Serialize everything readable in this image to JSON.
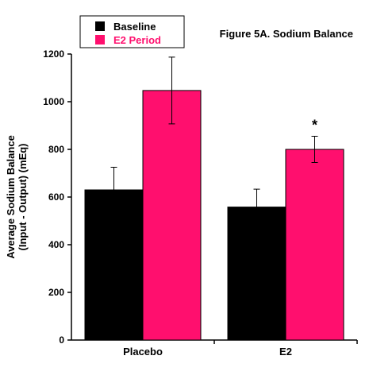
{
  "chart_data": {
    "type": "bar",
    "title": "Figure 5A.  Sodium Balance",
    "ylabel": "Average Sodium Balance",
    "ylabel2": "(Input - Output) (mEq)",
    "xlabel": "",
    "categories": [
      "Placebo",
      "E2"
    ],
    "ylim": [
      0,
      1200
    ],
    "yticks": [
      0,
      200,
      400,
      600,
      800,
      1000,
      1200
    ],
    "grid": false,
    "legend_position": "top-left",
    "series": [
      {
        "name": "Baseline",
        "color": "#000000",
        "values": [
          630,
          558
        ],
        "errors": [
          95,
          75
        ]
      },
      {
        "name": "E2 Period",
        "color": "#ff0f6e",
        "values": [
          1047,
          800
        ],
        "errors": [
          140,
          55
        ]
      }
    ],
    "annotations": [
      {
        "text": "*",
        "category": "E2",
        "series": "E2 Period"
      }
    ]
  },
  "legend_text_colors": [
    "#000000",
    "#ff0f6e"
  ]
}
